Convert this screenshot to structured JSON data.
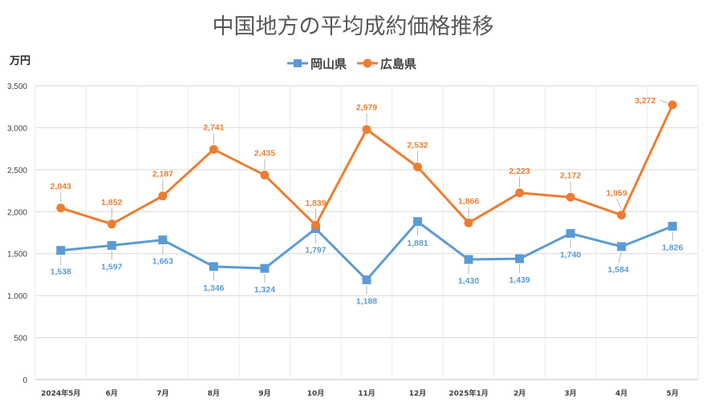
{
  "chart_data": {
    "type": "line",
    "title": "中国地方の平均成約価格推移",
    "ylabel": "万円",
    "xlabel": "",
    "ylim": [
      0,
      3500
    ],
    "ytick_step": 500,
    "grid": true,
    "legend_position": "top-center",
    "categories": [
      "2024年5月",
      "6月",
      "7月",
      "8月",
      "9月",
      "10月",
      "11月",
      "12月",
      "2025年1月",
      "2月",
      "3月",
      "4月",
      "5月"
    ],
    "series": [
      {
        "name": "岡山県",
        "marker": "square",
        "color": "#5B9BD5",
        "values": [
          1538,
          1597,
          1663,
          1346,
          1324,
          1797,
          1188,
          1881,
          1430,
          1439,
          1740,
          1584,
          1826
        ],
        "labels": [
          "1,538",
          "1,597",
          "1,663",
          "1,346",
          "1,324",
          "1,797",
          "1,188",
          "1,881",
          "1,430",
          "1,439",
          "1,740",
          "1,584",
          "1,826"
        ]
      },
      {
        "name": "広島県",
        "marker": "circle",
        "color": "#ED7D31",
        "values": [
          2043,
          1852,
          2187,
          2741,
          2435,
          1839,
          2979,
          2532,
          1866,
          2223,
          2172,
          1959,
          3272
        ],
        "labels": [
          "2,043",
          "1,852",
          "2,187",
          "2,741",
          "2,435",
          "1,839",
          "2,979",
          "2,532",
          "1,866",
          "2,223",
          "2,172",
          "1,959",
          "3,272"
        ]
      }
    ],
    "ytick_labels": [
      "0",
      "500",
      "1,000",
      "1,500",
      "2,000",
      "2,500",
      "3,000",
      "3,500"
    ]
  }
}
